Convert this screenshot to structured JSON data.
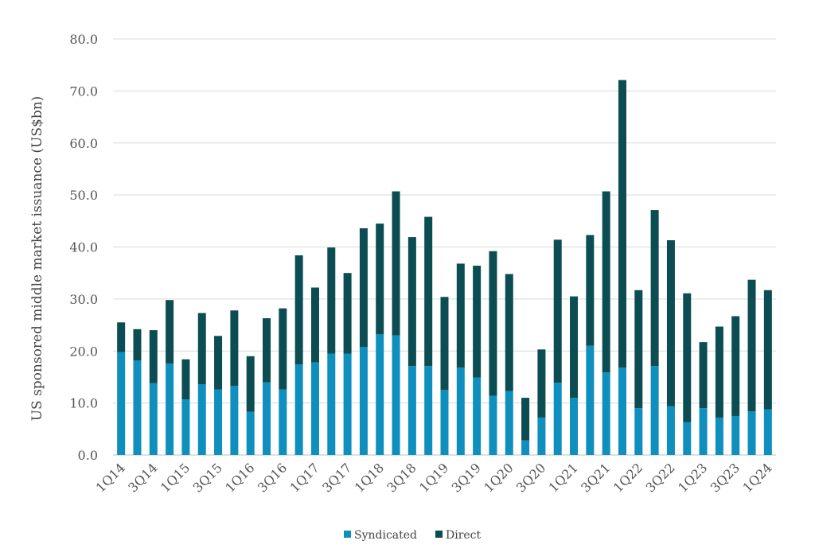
{
  "chart_data": {
    "type": "bar",
    "stacked": true,
    "ylabel": "US sponsored middle market issuance (US$bn)",
    "ylim": [
      0,
      80
    ],
    "yticks": [
      "0.0",
      "10.0",
      "20.0",
      "30.0",
      "40.0",
      "50.0",
      "60.0",
      "70.0",
      "80.0"
    ],
    "grid": true,
    "legend_position": "bottom",
    "categories": [
      "1Q14",
      "2Q14",
      "3Q14",
      "4Q14",
      "1Q15",
      "2Q15",
      "3Q15",
      "4Q15",
      "1Q16",
      "2Q16",
      "3Q16",
      "4Q16",
      "1Q17",
      "2Q17",
      "3Q17",
      "4Q17",
      "1Q18",
      "2Q18",
      "3Q18",
      "4Q18",
      "1Q19",
      "2Q19",
      "3Q19",
      "4Q19",
      "1Q20",
      "2Q20",
      "3Q20",
      "4Q20",
      "1Q21",
      "2Q21",
      "3Q21",
      "4Q21",
      "1Q22",
      "2Q22",
      "3Q22",
      "4Q22",
      "1Q23",
      "2Q23",
      "3Q23",
      "4Q23",
      "1Q24"
    ],
    "x_tick_labels": [
      "1Q14",
      "",
      "3Q14",
      "",
      "1Q15",
      "",
      "3Q15",
      "",
      "1Q16",
      "",
      "3Q16",
      "",
      "1Q17",
      "",
      "3Q17",
      "",
      "1Q18",
      "",
      "3Q18",
      "",
      "1Q19",
      "",
      "3Q19",
      "",
      "1Q20",
      "",
      "3Q20",
      "",
      "1Q21",
      "",
      "3Q21",
      "",
      "1Q22",
      "",
      "3Q22",
      "",
      "1Q23",
      "",
      "3Q23",
      "",
      "1Q24"
    ],
    "series": [
      {
        "name": "Syndicated",
        "color": "#0e8fbd",
        "values": [
          19.8,
          18.2,
          13.8,
          17.6,
          10.7,
          13.6,
          12.6,
          13.3,
          8.3,
          14.0,
          12.6,
          17.4,
          17.8,
          19.5,
          19.5,
          20.8,
          23.2,
          23.0,
          17.1,
          17.1,
          12.5,
          16.8,
          14.9,
          11.4,
          12.3,
          2.8,
          7.2,
          13.9,
          11.0,
          21.0,
          15.9,
          16.8,
          9.0,
          17.1,
          9.4,
          6.3,
          9.0,
          7.2,
          7.5,
          8.4,
          8.8
        ]
      },
      {
        "name": "Direct",
        "color": "#0b4d52",
        "values": [
          5.7,
          6.0,
          10.2,
          12.2,
          7.7,
          13.7,
          10.3,
          14.5,
          10.7,
          12.3,
          15.6,
          21.0,
          14.4,
          20.4,
          15.5,
          22.8,
          21.3,
          27.7,
          24.8,
          28.7,
          17.9,
          20.0,
          21.5,
          27.8,
          22.5,
          8.2,
          13.1,
          27.5,
          19.5,
          21.3,
          34.8,
          55.3,
          22.7,
          30.0,
          31.9,
          24.8,
          12.7,
          17.5,
          19.2,
          25.3,
          22.9
        ]
      }
    ]
  }
}
